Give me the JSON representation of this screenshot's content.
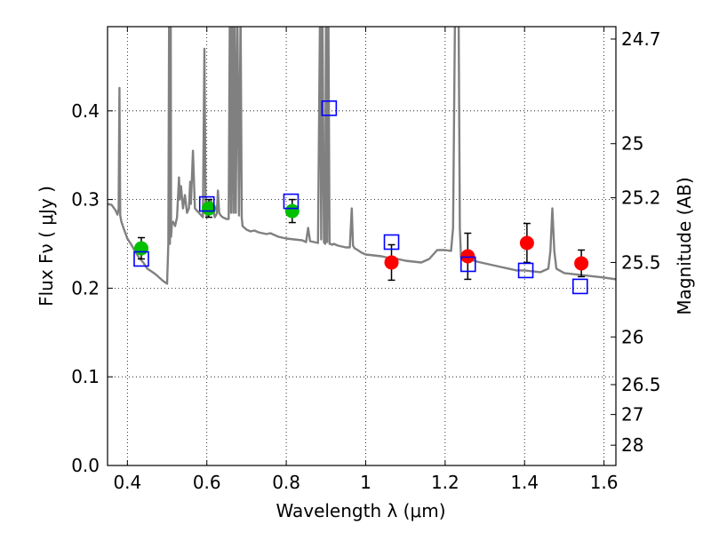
{
  "chart_data": {
    "type": "scatter",
    "xlabel": "Wavelength  λ (μm)",
    "ylabel": "Flux  Fν  ( μJy )",
    "y2label": "Magnitude (AB)",
    "xlim": [
      0.35,
      1.63
    ],
    "ylim": [
      0.0,
      0.495
    ],
    "x_ticks": [
      0.4,
      0.6,
      0.8,
      1.0,
      1.2,
      1.4,
      1.6
    ],
    "x_tick_labels": [
      "0.4",
      "0.6",
      "0.8",
      "1",
      "1.2",
      "1.4",
      "1.6"
    ],
    "y_ticks": [
      0.0,
      0.1,
      0.2,
      0.3,
      0.4
    ],
    "y_tick_labels": [
      "0.0",
      "0.1",
      "0.2",
      "0.3",
      "0.4"
    ],
    "y2_ticks": [
      {
        "label": "24.7",
        "flux": 0.481
      },
      {
        "label": "25",
        "flux": 0.363
      },
      {
        "label": "25.2",
        "flux": 0.302
      },
      {
        "label": "25.5",
        "flux": 0.229
      },
      {
        "label": "26",
        "flux": 0.145
      },
      {
        "label": "26.5",
        "flux": 0.0912
      },
      {
        "label": "27",
        "flux": 0.0575
      },
      {
        "label": "28",
        "flux": 0.0229
      }
    ],
    "grid": true,
    "colors": {
      "model": "#808080",
      "optical": "#00c000",
      "nir": "#ff0000",
      "model_flux": "#0000ff",
      "errorbar": "#000000"
    },
    "series": [
      {
        "kind": "line",
        "x": [
          0.35,
          0.36,
          0.37,
          0.375,
          0.378,
          0.38,
          0.382,
          0.385,
          0.39,
          0.4,
          0.41,
          0.42,
          0.43,
          0.44,
          0.45,
          0.46,
          0.47,
          0.48,
          0.49,
          0.5,
          0.503,
          0.505,
          0.507,
          0.509,
          0.51,
          0.512,
          0.515,
          0.52,
          0.525,
          0.53,
          0.532,
          0.535,
          0.54,
          0.545,
          0.55,
          0.555,
          0.558,
          0.56,
          0.565,
          0.57,
          0.58,
          0.59,
          0.594,
          0.597,
          0.6,
          0.605,
          0.61,
          0.62,
          0.625,
          0.628,
          0.631,
          0.635,
          0.64,
          0.65,
          0.655,
          0.658,
          0.661,
          0.664,
          0.667,
          0.67,
          0.673,
          0.677,
          0.681,
          0.685,
          0.688,
          0.69,
          0.7,
          0.71,
          0.72,
          0.73,
          0.74,
          0.75,
          0.76,
          0.77,
          0.78,
          0.79,
          0.8,
          0.82,
          0.84,
          0.85,
          0.855,
          0.86,
          0.87,
          0.88,
          0.885,
          0.888,
          0.891,
          0.895,
          0.898,
          0.9,
          0.903,
          0.906,
          0.909,
          0.912,
          0.915,
          0.92,
          0.93,
          0.94,
          0.95,
          0.96,
          0.965,
          0.968,
          0.972,
          0.98,
          0.99,
          1.0,
          1.02,
          1.04,
          1.06,
          1.08,
          1.1,
          1.12,
          1.14,
          1.16,
          1.18,
          1.2,
          1.215,
          1.22,
          1.225,
          1.228,
          1.231,
          1.234,
          1.237,
          1.24,
          1.25,
          1.26,
          1.28,
          1.3,
          1.32,
          1.34,
          1.36,
          1.38,
          1.4,
          1.42,
          1.44,
          1.46,
          1.465,
          1.47,
          1.475,
          1.48,
          1.5,
          1.52,
          1.54,
          1.56,
          1.58,
          1.6,
          1.63
        ],
        "y": [
          0.295,
          0.294,
          0.288,
          0.283,
          0.29,
          0.426,
          0.282,
          0.275,
          0.268,
          0.256,
          0.249,
          0.241,
          0.234,
          0.229,
          0.222,
          0.219,
          0.216,
          0.212,
          0.208,
          0.205,
          0.25,
          0.515,
          0.25,
          0.515,
          0.258,
          0.272,
          0.275,
          0.27,
          0.28,
          0.325,
          0.3,
          0.315,
          0.29,
          0.305,
          0.285,
          0.29,
          0.32,
          0.295,
          0.355,
          0.29,
          0.285,
          0.28,
          0.47,
          0.29,
          0.28,
          0.284,
          0.3,
          0.28,
          0.284,
          0.31,
          0.285,
          0.282,
          0.28,
          0.278,
          0.278,
          0.515,
          0.285,
          0.515,
          0.285,
          0.515,
          0.285,
          0.515,
          0.282,
          0.515,
          0.28,
          0.27,
          0.266,
          0.264,
          0.265,
          0.263,
          0.262,
          0.261,
          0.262,
          0.26,
          0.258,
          0.257,
          0.256,
          0.255,
          0.254,
          0.252,
          0.268,
          0.253,
          0.252,
          0.251,
          0.515,
          0.255,
          0.515,
          0.252,
          0.25,
          0.515,
          0.252,
          0.515,
          0.25,
          0.25,
          0.249,
          0.25,
          0.248,
          0.247,
          0.246,
          0.246,
          0.29,
          0.248,
          0.245,
          0.243,
          0.24,
          0.238,
          0.237,
          0.236,
          0.234,
          0.233,
          0.231,
          0.23,
          0.229,
          0.233,
          0.243,
          0.243,
          0.242,
          0.268,
          0.515,
          0.515,
          0.515,
          0.515,
          0.268,
          0.235,
          0.235,
          0.233,
          0.23,
          0.228,
          0.226,
          0.224,
          0.222,
          0.22,
          0.22,
          0.219,
          0.218,
          0.222,
          0.242,
          0.29,
          0.242,
          0.222,
          0.217,
          0.216,
          0.215,
          0.214,
          0.213,
          0.212,
          0.21
        ]
      },
      {
        "name": "",
        "kind": "points",
        "marker": "circle",
        "color": "#00c000",
        "x": [
          0.435,
          0.605,
          0.815
        ],
        "y": [
          0.245,
          0.29,
          0.287
        ],
        "yerr": [
          0.012,
          0.01,
          0.013
        ]
      },
      {
        "name": "",
        "kind": "points",
        "marker": "circle",
        "color": "#ff0000",
        "x": [
          1.065,
          1.257,
          1.406,
          1.543
        ],
        "y": [
          0.229,
          0.236,
          0.251,
          0.228
        ],
        "yerr": [
          0.02,
          0.026,
          0.022,
          0.015
        ]
      },
      {
        "name": "",
        "kind": "points",
        "marker": "square-open",
        "color": "#0000ff",
        "x": [
          0.435,
          0.6,
          0.812,
          0.908,
          1.065,
          1.258,
          1.403,
          1.54
        ],
        "y": [
          0.233,
          0.295,
          0.298,
          0.403,
          0.252,
          0.227,
          0.22,
          0.202
        ]
      }
    ]
  }
}
